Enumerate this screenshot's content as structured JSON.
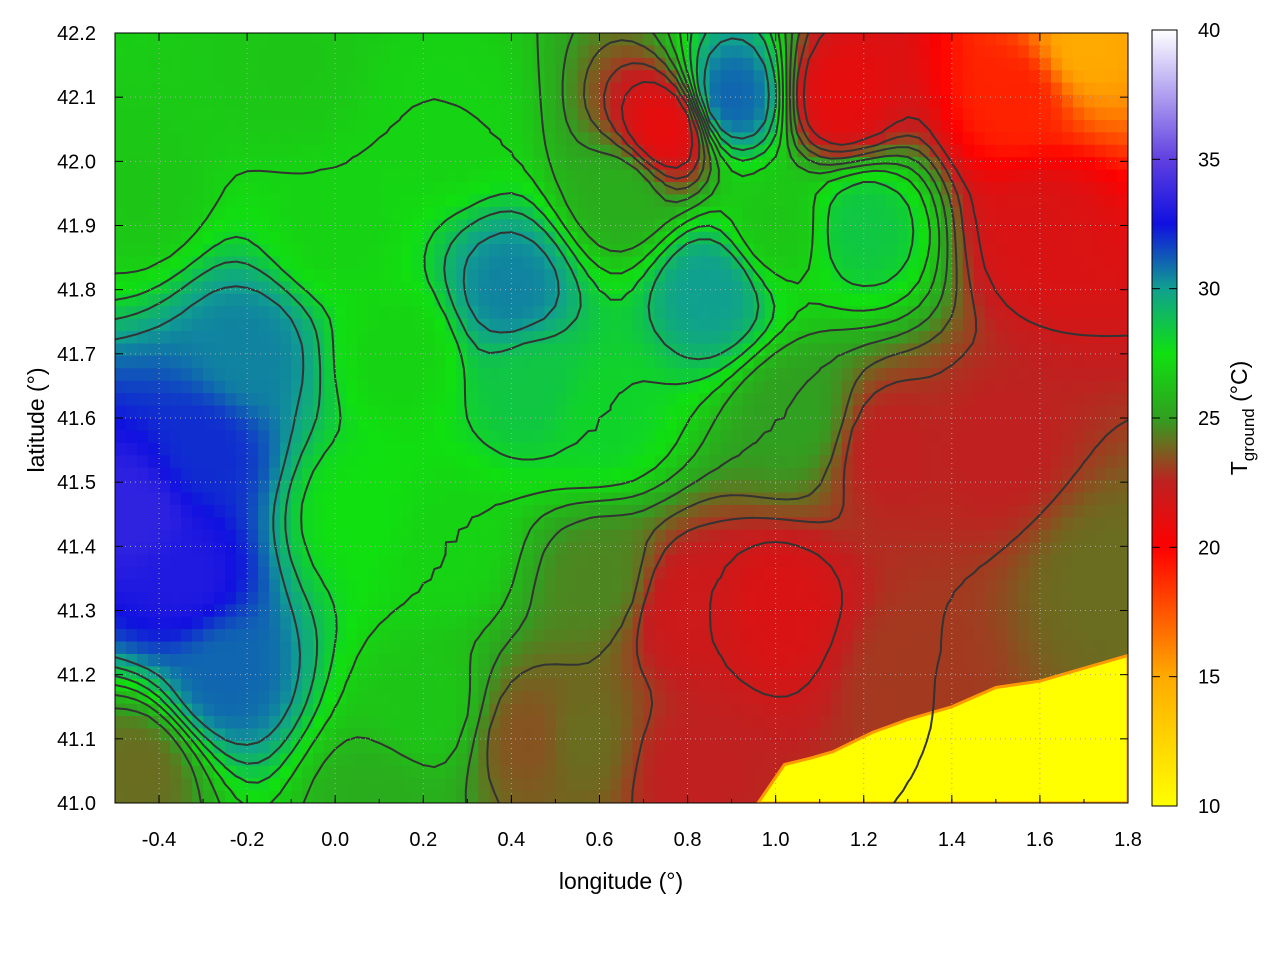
{
  "chart_data": {
    "type": "heatmap",
    "title": "",
    "xlabel": "longitude (°)",
    "ylabel": "latitude (°)",
    "colorbar_label": "T",
    "colorbar_label_sub": "ground",
    "colorbar_label_unit": " (°C)",
    "xlim": [
      -0.5,
      1.8
    ],
    "ylim": [
      41.0,
      42.2
    ],
    "clim": [
      10,
      40
    ],
    "x_ticks": [
      -0.4,
      -0.2,
      0.0,
      0.2,
      0.4,
      0.6,
      0.8,
      1.0,
      1.2,
      1.4,
      1.6,
      1.8
    ],
    "x_tick_labels": [
      "-0.4",
      "-0.2",
      "0.0",
      "0.2",
      "0.4",
      "0.6",
      "0.8",
      "1.0",
      "1.2",
      "1.4",
      "1.6",
      "1.8"
    ],
    "y_ticks": [
      41.0,
      41.1,
      41.2,
      41.3,
      41.4,
      41.5,
      41.6,
      41.7,
      41.8,
      41.9,
      42.0,
      42.1,
      42.2
    ],
    "y_tick_labels": [
      "41.0",
      "41.1",
      "41.2",
      "41.3",
      "41.4",
      "41.5",
      "41.6",
      "41.7",
      "41.8",
      "41.9",
      "42.0",
      "42.1",
      "42.2"
    ],
    "colorbar_ticks": [
      10,
      15,
      20,
      25,
      30,
      35,
      40
    ],
    "colorbar_tick_labels": [
      "10",
      "15",
      "20",
      "25",
      "30",
      "35",
      "40"
    ],
    "grid": true,
    "contours": true,
    "colormap": [
      {
        "value": 10,
        "color": "#ffff00"
      },
      {
        "value": 15,
        "color": "#ffaa00"
      },
      {
        "value": 20,
        "color": "#ff0000"
      },
      {
        "value": 22.5,
        "color": "#c02020"
      },
      {
        "value": 25,
        "color": "#30a020"
      },
      {
        "value": 27.5,
        "color": "#10e010"
      },
      {
        "value": 30,
        "color": "#10a090"
      },
      {
        "value": 32.5,
        "color": "#1010e0"
      },
      {
        "value": 35,
        "color": "#6040e0"
      },
      {
        "value": 40,
        "color": "#ffffff"
      }
    ],
    "field_points": [
      {
        "lon": -0.45,
        "lat": 41.45,
        "t": 33.5
      },
      {
        "lon": -0.35,
        "lat": 41.35,
        "t": 33.0
      },
      {
        "lon": -0.3,
        "lat": 41.55,
        "t": 32.0
      },
      {
        "lon": -0.25,
        "lat": 41.2,
        "t": 31.0
      },
      {
        "lon": -0.2,
        "lat": 41.7,
        "t": 30.5
      },
      {
        "lon": -0.45,
        "lat": 41.05,
        "t": 24.0
      },
      {
        "lon": -0.45,
        "lat": 41.95,
        "t": 26.5
      },
      {
        "lon": -0.1,
        "lat": 42.15,
        "t": 26.5
      },
      {
        "lon": 0.0,
        "lat": 41.9,
        "t": 27.0
      },
      {
        "lon": 0.05,
        "lat": 41.45,
        "t": 27.5
      },
      {
        "lon": 0.15,
        "lat": 41.7,
        "t": 27.0
      },
      {
        "lon": 0.25,
        "lat": 42.05,
        "t": 27.0
      },
      {
        "lon": 0.4,
        "lat": 41.8,
        "t": 30.5
      },
      {
        "lon": 0.45,
        "lat": 41.65,
        "t": 28.5
      },
      {
        "lon": 0.6,
        "lat": 41.6,
        "t": 28.0
      },
      {
        "lon": 0.85,
        "lat": 41.8,
        "t": 30.0
      },
      {
        "lon": 0.9,
        "lat": 42.1,
        "t": 31.0
      },
      {
        "lon": 1.2,
        "lat": 41.9,
        "t": 28.5
      },
      {
        "lon": 0.75,
        "lat": 42.05,
        "t": 21.0
      },
      {
        "lon": 1.15,
        "lat": 42.1,
        "t": 21.0
      },
      {
        "lon": 1.55,
        "lat": 42.1,
        "t": 19.0
      },
      {
        "lon": 1.7,
        "lat": 42.18,
        "t": 15.0
      },
      {
        "lon": 1.6,
        "lat": 41.9,
        "t": 21.5
      },
      {
        "lon": 1.5,
        "lat": 41.55,
        "t": 22.5
      },
      {
        "lon": 1.25,
        "lat": 41.55,
        "t": 22.5
      },
      {
        "lon": 1.0,
        "lat": 41.3,
        "t": 21.5
      },
      {
        "lon": 0.8,
        "lat": 41.3,
        "t": 22.0
      },
      {
        "lon": 1.3,
        "lat": 41.2,
        "t": 23.0
      },
      {
        "lon": 0.6,
        "lat": 41.35,
        "t": 24.5
      },
      {
        "lon": 0.55,
        "lat": 41.1,
        "t": 24.0
      },
      {
        "lon": 0.45,
        "lat": 41.1,
        "t": 23.5
      },
      {
        "lon": 0.8,
        "lat": 41.05,
        "t": 22.5
      },
      {
        "lon": 0.2,
        "lat": 41.15,
        "t": 26.5
      },
      {
        "lon": 0.25,
        "lat": 41.4,
        "t": 27.0
      },
      {
        "lon": 0.1,
        "lat": 41.0,
        "t": 25.5
      },
      {
        "lon": 1.05,
        "lat": 41.6,
        "t": 25.0
      },
      {
        "lon": 1.75,
        "lat": 41.35,
        "t": 24.0
      },
      {
        "lon": 1.0,
        "lat": 41.9,
        "t": 26.5
      },
      {
        "lon": 0.65,
        "lat": 41.95,
        "t": 25.5
      }
    ],
    "sea_boundary": [
      {
        "lon": 0.96,
        "lat": 41.0
      },
      {
        "lon": 1.02,
        "lat": 41.06
      },
      {
        "lon": 1.08,
        "lat": 41.07
      },
      {
        "lon": 1.13,
        "lat": 41.08
      },
      {
        "lon": 1.22,
        "lat": 41.11
      },
      {
        "lon": 1.3,
        "lat": 41.13
      },
      {
        "lon": 1.4,
        "lat": 41.15
      },
      {
        "lon": 1.5,
        "lat": 41.18
      },
      {
        "lon": 1.6,
        "lat": 41.19
      },
      {
        "lon": 1.7,
        "lat": 41.21
      },
      {
        "lon": 1.8,
        "lat": 41.23
      }
    ]
  }
}
